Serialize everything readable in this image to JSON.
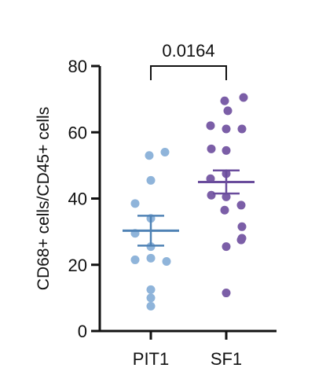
{
  "chart_data": {
    "type": "scatter",
    "ylabel": "CD68+ cells/CD45+ cells",
    "xlabel": "",
    "title": "",
    "categories": [
      "PIT1",
      "SF1"
    ],
    "ylim": [
      0,
      80
    ],
    "yticks": [
      0,
      20,
      40,
      60,
      80
    ],
    "grid": false,
    "legend": "none",
    "series": [
      {
        "category": "PIT1",
        "color": "#8FB4DA",
        "summary_color": "#4F82B5",
        "values": [
          54,
          53,
          45.5,
          38.5,
          34,
          29.5,
          25.5,
          21.5,
          22,
          21,
          12.5,
          10,
          7.5
        ],
        "mean": 30.3,
        "error_low": 25.8,
        "error_high": 34.8
      },
      {
        "category": "SF1",
        "color": "#7B5EA7",
        "summary_color": "#6A4C9C",
        "values": [
          70.5,
          69.5,
          66.5,
          62,
          61,
          61,
          55,
          54.5,
          47.5,
          46,
          41,
          40.5,
          38,
          36.5,
          31.5,
          28,
          27.5,
          25.5,
          11.5
        ],
        "mean": 45,
        "error_low": 41.5,
        "error_high": 48.5
      }
    ],
    "annotations": [
      {
        "type": "significance-bracket",
        "from": "PIT1",
        "to": "SF1",
        "label": "0.0164"
      }
    ]
  }
}
